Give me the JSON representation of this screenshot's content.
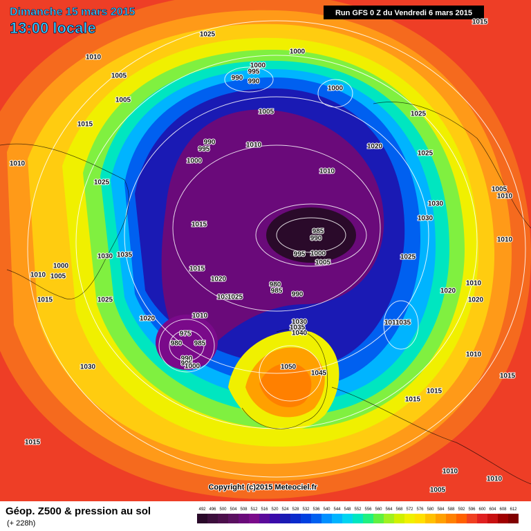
{
  "header": {
    "date": "Dimanche 15 mars 2015",
    "time": "13:00 locale",
    "run": "Run GFS 0 Z du Vendredi 6 mars 2015"
  },
  "isobar_labels": [
    "1025",
    "1000",
    "1010",
    "1005",
    "1000",
    "995",
    "990",
    "990",
    "1000",
    "1005",
    "1015",
    "1005",
    "1025",
    "990",
    "995",
    "1010",
    "1020",
    "1010",
    "1000",
    "1025",
    "1010",
    "1025",
    "1005",
    "1010",
    "1030",
    "1030",
    "1015",
    "985",
    "990",
    "1010",
    "1030",
    "1035",
    "995",
    "1000",
    "1005",
    "1025",
    "1000",
    "1015",
    "1010",
    "1005",
    "980",
    "1020",
    "1010",
    "1020",
    "985",
    "990",
    "1035",
    "1025",
    "1015",
    "1025",
    "1020",
    "1010",
    "1020",
    "1030",
    "1010",
    "1035",
    "1035",
    "1040",
    "975",
    "980",
    "985",
    "990",
    "995",
    "1000",
    "1010",
    "1030",
    "1050",
    "1045",
    "1015",
    "1015",
    "1015",
    "1015",
    "1010",
    "1010",
    "1005",
    "1015"
  ],
  "footer": {
    "title": "Géop. Z500 & pression au sol",
    "lead": "(+ 228h)",
    "copyright": "Copyright (c)2015 Meteociel.fr"
  },
  "legend": {
    "labels": [
      492,
      496,
      500,
      504,
      508,
      512,
      516,
      520,
      524,
      528,
      532,
      536,
      540,
      544,
      548,
      552,
      556,
      560,
      564,
      568,
      572,
      576,
      580,
      584,
      588,
      592,
      596,
      600,
      604,
      608,
      612
    ],
    "colors": [
      "#2a0a2a",
      "#3c0f3c",
      "#4b0f4b",
      "#5a1060",
      "#6a0a7a",
      "#7a0a8a",
      "#5a0a9a",
      "#3a0aaa",
      "#1a1ab4",
      "#0a2acc",
      "#0040e0",
      "#0060f0",
      "#0090ff",
      "#00b4ff",
      "#00d4f0",
      "#00e6c0",
      "#20f080",
      "#60f040",
      "#a0f020",
      "#d0f000",
      "#f0f000",
      "#ffe000",
      "#ffc000",
      "#ffa000",
      "#ff8000",
      "#ff6000",
      "#f04020",
      "#e02020",
      "#c81010",
      "#a00000",
      "#800000"
    ]
  }
}
